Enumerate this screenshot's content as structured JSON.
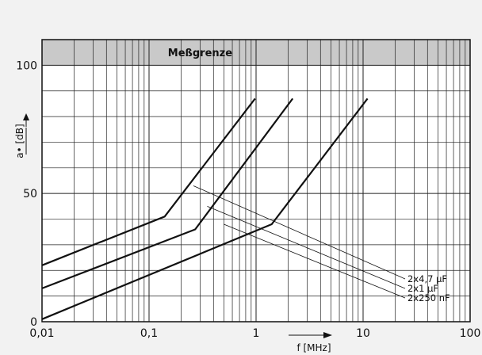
{
  "chart_data": {
    "type": "line",
    "x_scale": "log",
    "xlim": [
      0.01,
      100
    ],
    "ylim": [
      0,
      110
    ],
    "grid": true,
    "band": {
      "label": "Meßgrenze",
      "from": 100,
      "to": 110
    },
    "xlabel": "f [MHz]",
    "ylabel": "a• [dB]",
    "x_tick_labels": [
      {
        "x": 0.01,
        "label": "0,01"
      },
      {
        "x": 0.1,
        "label": "0,1"
      },
      {
        "x": 1,
        "label": "1"
      },
      {
        "x": 10,
        "label": "10"
      },
      {
        "x": 100,
        "label": "100"
      }
    ],
    "y_tick_labels": [
      {
        "y": 0,
        "label": "0"
      },
      {
        "y": 50,
        "label": "50"
      },
      {
        "y": 100,
        "label": "100"
      }
    ],
    "series": [
      {
        "name": "2x4,7 µF",
        "x": [
          0.01,
          0.14,
          0.98
        ],
        "y": [
          22,
          41,
          87
        ]
      },
      {
        "name": "2x1 µF",
        "x": [
          0.01,
          0.27,
          2.2
        ],
        "y": [
          13,
          36,
          87
        ]
      },
      {
        "name": "2x250 nF",
        "x": [
          0.01,
          1.4,
          11
        ],
        "y": [
          1,
          38,
          87
        ]
      }
    ],
    "annotations": [
      {
        "text": "2x4,7 µF",
        "from": [
          0.26,
          53
        ]
      },
      {
        "text": "2x1 µF",
        "from": [
          0.35,
          45
        ]
      },
      {
        "text": "2x250 nF",
        "from": [
          0.5,
          38
        ]
      }
    ]
  }
}
